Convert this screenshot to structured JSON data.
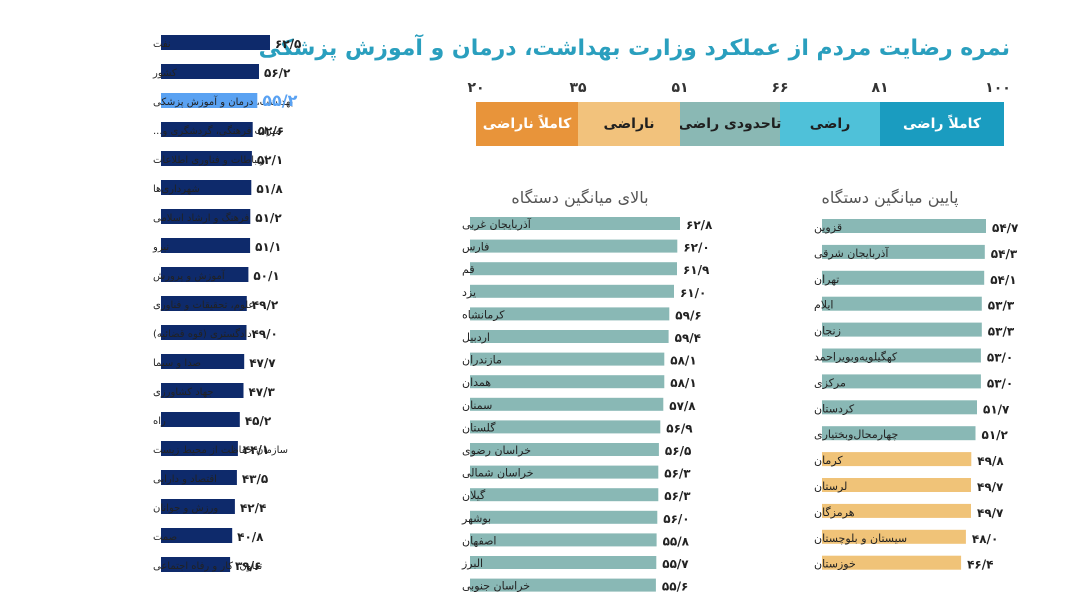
{
  "title": "نمره رضایت مردم از عملکرد وزارت بهداشت، درمان و آموزش پزشکی",
  "scale": {
    "ticks": [
      "۱۰۰",
      "۸۱",
      "۶۶",
      "۵۱",
      "۳۵",
      "۲۰"
    ],
    "bands": [
      {
        "label": "کاملاً راضی",
        "color": "#1a9cc0"
      },
      {
        "label": "راضی",
        "color": "#4fc1d9"
      },
      {
        "label": "تاحدودی راضی",
        "color": "#8ab8b4"
      },
      {
        "label": "ناراضی",
        "color": "#f2c27c"
      },
      {
        "label": "کاملاً ناراضی",
        "color": "#e8943a"
      }
    ]
  },
  "colors": {
    "ministry_bar": "#0e2a6b",
    "ministry_highlight": "#5aa2f2",
    "province_above": "#89b8b5",
    "province_below_teal": "#89b8b5",
    "province_below_orange": "#f0c378"
  },
  "chart_data": [
    {
      "type": "bar",
      "orientation": "horizontal",
      "categories": [
        "نفت",
        "کشور",
        "بهداشت، درمان و آموزش پزشکی",
        "میراث فرهنگی، گردشگری و...",
        "ارتباطات و فناوری اطلاعات",
        "شهرداری‌ها",
        "فرهنگ و ارشاد اسلامی",
        "نیرو",
        "آموزش و پرورش",
        "علوم، تحقیقات و فناوری",
        "دادگستری (قوه قضائیه)",
        "صدا و سیما",
        "جهاد کشاورزی",
        "راه",
        "سازمان حفاظت از محیط زیست",
        "اقتصاد و دارایی",
        "ورزش و جوانان",
        "صمت",
        "تعاون، کار و رفاه اجتماعی"
      ],
      "values": [
        62.5,
        56.2,
        55.2,
        52.6,
        52.1,
        51.8,
        51.2,
        51.1,
        50.1,
        49.2,
        49.0,
        47.7,
        47.3,
        45.2,
        44.1,
        43.5,
        42.4,
        40.8,
        39.6
      ],
      "labels": [
        "۶۲/۵",
        "۵۶/۲",
        "۵۵/۲",
        "۵۲/۶",
        "۵۲/۱",
        "۵۱/۸",
        "۵۱/۲",
        "۵۱/۱",
        "۵۰/۱",
        "۴۹/۲",
        "۴۹/۰",
        "۴۷/۷",
        "۴۷/۳",
        "۴۵/۲",
        "۴۴/۱",
        "۴۳/۵",
        "۴۲/۴",
        "۴۰/۸",
        "۳۹/۶"
      ],
      "highlight": "بهداشت، درمان و آموزش پزشکی"
    },
    {
      "type": "bar",
      "orientation": "horizontal",
      "title": "بالای میانگین دستگاه",
      "categories": [
        "آذربایجان غربی",
        "فارس",
        "قم",
        "یزد",
        "کرمانشاه",
        "اردبیل",
        "مازندران",
        "همدان",
        "سمنان",
        "گلستان",
        "خراسان رضوی",
        "خراسان شمالی",
        "گیلان",
        "بوشهر",
        "اصفهان",
        "البرز",
        "خراسان جنوبی"
      ],
      "values": [
        62.8,
        62.0,
        61.9,
        61.0,
        59.6,
        59.4,
        58.1,
        58.1,
        57.8,
        56.9,
        56.5,
        56.3,
        56.3,
        56.0,
        55.8,
        55.7,
        55.6
      ],
      "labels": [
        "۶۲/۸",
        "۶۲/۰",
        "۶۱/۹",
        "۶۱/۰",
        "۵۹/۶",
        "۵۹/۴",
        "۵۸/۱",
        "۵۸/۱",
        "۵۷/۸",
        "۵۶/۹",
        "۵۶/۵",
        "۵۶/۳",
        "۵۶/۳",
        "۵۶/۰",
        "۵۵/۸",
        "۵۵/۷",
        "۵۵/۶"
      ]
    },
    {
      "type": "bar",
      "orientation": "horizontal",
      "title": "پایین میانگین دستگاه",
      "categories": [
        "قزوین",
        "آذربایجان شرقی",
        "تهران",
        "ایلام",
        "زنجان",
        "کهگیلویه‌وبویراحمد",
        "مرکزی",
        "کردستان",
        "چهارمحال‌وبختیاری",
        "کرمان",
        "لرستان",
        "هرمزگان",
        "سیستان و بلوچستان",
        "خوزستان"
      ],
      "values": [
        54.7,
        54.3,
        54.1,
        53.3,
        53.3,
        53.0,
        53.0,
        51.7,
        51.2,
        49.8,
        49.7,
        49.7,
        48.0,
        46.4
      ],
      "labels": [
        "۵۴/۷",
        "۵۴/۳",
        "۵۴/۱",
        "۵۳/۳",
        "۵۳/۳",
        "۵۳/۰",
        "۵۳/۰",
        "۵۱/۷",
        "۵۱/۲",
        "۴۹/۸",
        "۴۹/۷",
        "۴۹/۷",
        "۴۸/۰",
        "۴۶/۴"
      ]
    }
  ]
}
